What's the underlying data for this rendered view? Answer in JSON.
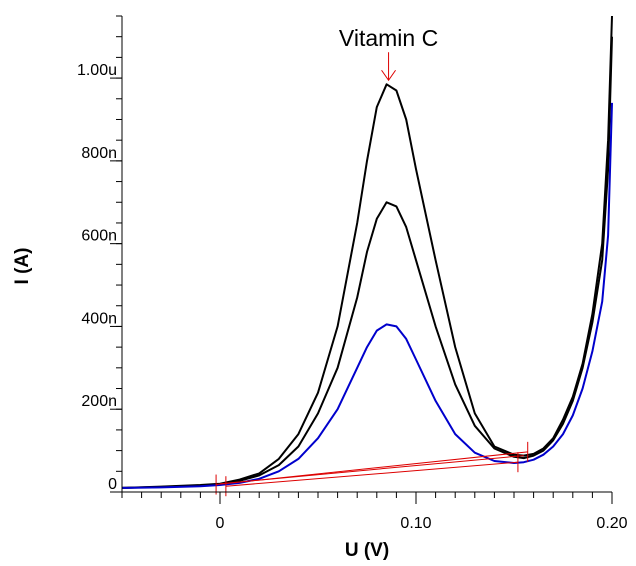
{
  "chart_data": {
    "type": "line",
    "title": "",
    "xlabel": "U (V)",
    "ylabel": "I (A)",
    "xlim": [
      -0.05,
      0.2
    ],
    "ylim": [
      0,
      1.15
    ],
    "x_unit_note": "V",
    "x_ticks": [
      {
        "value": 0,
        "label": "0"
      },
      {
        "value": 0.1,
        "label": "0.10"
      },
      {
        "value": 0.2,
        "label": "0.20"
      }
    ],
    "y_ticks": [
      {
        "value": 0,
        "label": "0"
      },
      {
        "value": 0.2,
        "label": "200n"
      },
      {
        "value": 0.4,
        "label": "400n"
      },
      {
        "value": 0.6,
        "label": "600n"
      },
      {
        "value": 0.8,
        "label": "800n"
      },
      {
        "value": 1.0,
        "label": "1.00u"
      }
    ],
    "y_value_unit": "uA",
    "grid": false,
    "annotation": {
      "text": "Vitamin C",
      "x": 0.086,
      "y": 0.99
    },
    "series": [
      {
        "color": "#000000",
        "points": [
          [
            -0.05,
            0.01
          ],
          [
            -0.03,
            0.013
          ],
          [
            -0.01,
            0.017
          ],
          [
            0.0,
            0.02
          ],
          [
            0.01,
            0.03
          ],
          [
            0.02,
            0.045
          ],
          [
            0.03,
            0.08
          ],
          [
            0.04,
            0.14
          ],
          [
            0.05,
            0.24
          ],
          [
            0.06,
            0.4
          ],
          [
            0.07,
            0.65
          ],
          [
            0.075,
            0.8
          ],
          [
            0.08,
            0.93
          ],
          [
            0.085,
            0.985
          ],
          [
            0.09,
            0.97
          ],
          [
            0.095,
            0.9
          ],
          [
            0.1,
            0.78
          ],
          [
            0.11,
            0.56
          ],
          [
            0.12,
            0.35
          ],
          [
            0.13,
            0.19
          ],
          [
            0.14,
            0.11
          ],
          [
            0.15,
            0.09
          ],
          [
            0.155,
            0.088
          ],
          [
            0.16,
            0.092
          ],
          [
            0.165,
            0.105
          ],
          [
            0.17,
            0.13
          ],
          [
            0.175,
            0.175
          ],
          [
            0.18,
            0.23
          ],
          [
            0.185,
            0.31
          ],
          [
            0.19,
            0.43
          ],
          [
            0.195,
            0.6
          ],
          [
            0.198,
            0.85
          ],
          [
            0.2,
            1.15
          ]
        ]
      },
      {
        "color": "#000000",
        "points": [
          [
            -0.05,
            0.01
          ],
          [
            -0.03,
            0.012
          ],
          [
            -0.01,
            0.016
          ],
          [
            0.0,
            0.019
          ],
          [
            0.01,
            0.027
          ],
          [
            0.02,
            0.04
          ],
          [
            0.03,
            0.065
          ],
          [
            0.04,
            0.11
          ],
          [
            0.05,
            0.19
          ],
          [
            0.06,
            0.3
          ],
          [
            0.07,
            0.47
          ],
          [
            0.075,
            0.58
          ],
          [
            0.08,
            0.66
          ],
          [
            0.085,
            0.7
          ],
          [
            0.09,
            0.69
          ],
          [
            0.095,
            0.64
          ],
          [
            0.1,
            0.56
          ],
          [
            0.11,
            0.4
          ],
          [
            0.12,
            0.26
          ],
          [
            0.13,
            0.16
          ],
          [
            0.14,
            0.105
          ],
          [
            0.15,
            0.085
          ],
          [
            0.155,
            0.082
          ],
          [
            0.16,
            0.088
          ],
          [
            0.165,
            0.1
          ],
          [
            0.17,
            0.125
          ],
          [
            0.175,
            0.165
          ],
          [
            0.18,
            0.22
          ],
          [
            0.185,
            0.3
          ],
          [
            0.19,
            0.41
          ],
          [
            0.195,
            0.56
          ],
          [
            0.198,
            0.78
          ],
          [
            0.2,
            1.1
          ]
        ]
      },
      {
        "color": "#0000cc",
        "points": [
          [
            -0.05,
            0.01
          ],
          [
            -0.03,
            0.011
          ],
          [
            -0.01,
            0.014
          ],
          [
            0.0,
            0.017
          ],
          [
            0.01,
            0.022
          ],
          [
            0.02,
            0.032
          ],
          [
            0.03,
            0.05
          ],
          [
            0.04,
            0.08
          ],
          [
            0.05,
            0.13
          ],
          [
            0.06,
            0.2
          ],
          [
            0.07,
            0.3
          ],
          [
            0.075,
            0.35
          ],
          [
            0.08,
            0.39
          ],
          [
            0.085,
            0.405
          ],
          [
            0.09,
            0.4
          ],
          [
            0.095,
            0.37
          ],
          [
            0.1,
            0.32
          ],
          [
            0.11,
            0.22
          ],
          [
            0.12,
            0.14
          ],
          [
            0.13,
            0.095
          ],
          [
            0.14,
            0.075
          ],
          [
            0.15,
            0.07
          ],
          [
            0.155,
            0.072
          ],
          [
            0.16,
            0.078
          ],
          [
            0.165,
            0.09
          ],
          [
            0.17,
            0.11
          ],
          [
            0.175,
            0.14
          ],
          [
            0.18,
            0.185
          ],
          [
            0.185,
            0.25
          ],
          [
            0.19,
            0.34
          ],
          [
            0.195,
            0.46
          ],
          [
            0.198,
            0.62
          ],
          [
            0.2,
            0.94
          ]
        ]
      }
    ],
    "baselines": {
      "color": "#dd0000",
      "lines": [
        [
          [
            -0.002,
            0.018
          ],
          [
            0.157,
            0.097
          ]
        ],
        [
          [
            0.0,
            0.02
          ],
          [
            0.155,
            0.088
          ]
        ],
        [
          [
            0.003,
            0.014
          ],
          [
            0.152,
            0.072
          ]
        ]
      ],
      "markers": [
        [
          -0.002,
          0.018
        ],
        [
          0.003,
          0.014
        ],
        [
          0.152,
          0.072
        ],
        [
          0.157,
          0.097
        ]
      ]
    }
  }
}
